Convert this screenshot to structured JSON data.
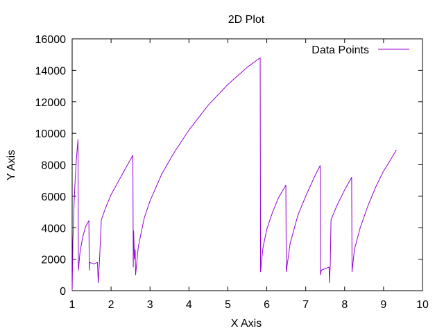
{
  "chart_data": {
    "type": "line",
    "title": "2D Plot",
    "xlabel": "X Axis",
    "ylabel": "Y Axis",
    "xlim": [
      1,
      10
    ],
    "ylim": [
      0,
      16000
    ],
    "xticks": [
      1,
      2,
      3,
      4,
      5,
      6,
      7,
      8,
      9,
      10
    ],
    "yticks": [
      0,
      2000,
      4000,
      6000,
      8000,
      10000,
      12000,
      14000,
      16000
    ],
    "grid": false,
    "legend_position": "top-right",
    "series": [
      {
        "name": "Data Points",
        "color": "#9400d3",
        "points": [
          [
            1.0,
            0
          ],
          [
            1.02,
            3200
          ],
          [
            1.05,
            5600
          ],
          [
            1.08,
            7200
          ],
          [
            1.11,
            8400
          ],
          [
            1.15,
            9600
          ],
          [
            1.16,
            1300
          ],
          [
            1.2,
            2400
          ],
          [
            1.27,
            3400
          ],
          [
            1.35,
            4100
          ],
          [
            1.43,
            4450
          ],
          [
            1.44,
            1300
          ],
          [
            1.45,
            1800
          ],
          [
            1.55,
            1700
          ],
          [
            1.65,
            1800
          ],
          [
            1.67,
            500
          ],
          [
            1.7,
            1800
          ],
          [
            1.75,
            4500
          ],
          [
            1.85,
            5200
          ],
          [
            2.0,
            6100
          ],
          [
            2.2,
            7000
          ],
          [
            2.4,
            7900
          ],
          [
            2.56,
            8600
          ],
          [
            2.57,
            1500
          ],
          [
            2.58,
            3800
          ],
          [
            2.6,
            2000
          ],
          [
            2.62,
            2600
          ],
          [
            2.63,
            1000
          ],
          [
            2.7,
            2800
          ],
          [
            2.85,
            4600
          ],
          [
            3.0,
            5700
          ],
          [
            3.3,
            7400
          ],
          [
            3.6,
            8700
          ],
          [
            4.0,
            10200
          ],
          [
            4.5,
            11800
          ],
          [
            5.0,
            13100
          ],
          [
            5.5,
            14200
          ],
          [
            5.83,
            14800
          ],
          [
            5.84,
            1200
          ],
          [
            5.9,
            2700
          ],
          [
            6.0,
            3900
          ],
          [
            6.15,
            5000
          ],
          [
            6.3,
            5900
          ],
          [
            6.49,
            6700
          ],
          [
            6.5,
            1200
          ],
          [
            6.6,
            3000
          ],
          [
            6.8,
            4800
          ],
          [
            7.0,
            6000
          ],
          [
            7.2,
            7100
          ],
          [
            7.37,
            7950
          ],
          [
            7.38,
            1000
          ],
          [
            7.4,
            1300
          ],
          [
            7.5,
            1400
          ],
          [
            7.6,
            1500
          ],
          [
            7.61,
            500
          ],
          [
            7.63,
            1600
          ],
          [
            7.65,
            4500
          ],
          [
            7.8,
            5400
          ],
          [
            8.0,
            6400
          ],
          [
            8.18,
            7200
          ],
          [
            8.19,
            1200
          ],
          [
            8.25,
            2600
          ],
          [
            8.4,
            4000
          ],
          [
            8.6,
            5400
          ],
          [
            8.8,
            6600
          ],
          [
            9.0,
            7600
          ],
          [
            9.2,
            8400
          ],
          [
            9.33,
            8950
          ]
        ]
      }
    ]
  }
}
